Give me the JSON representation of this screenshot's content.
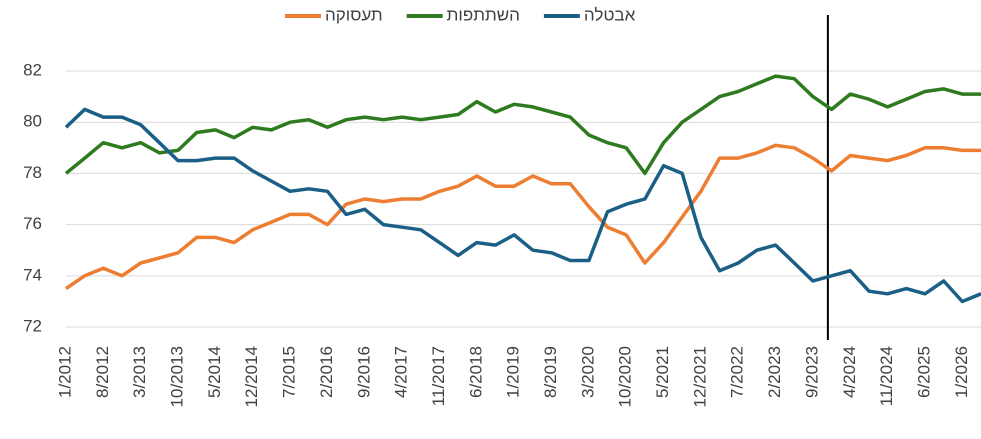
{
  "chart_data": {
    "type": "line",
    "categories": [
      "1/2012",
      null,
      "8/2012",
      null,
      "3/2013",
      null,
      "10/2013",
      null,
      "5/2014",
      null,
      "12/2014",
      null,
      "7/2015",
      null,
      "2/2016",
      null,
      "9/2016",
      null,
      "4/2017",
      null,
      "11/2017",
      null,
      "6/2018",
      null,
      "1/2019",
      null,
      "8/2019",
      null,
      "3/2020",
      null,
      "10/2020",
      null,
      "5/2021",
      null,
      "12/2021",
      null,
      "7/2022",
      null,
      "2/2023",
      null,
      "9/2023",
      null,
      "4/2024",
      null,
      "11/2024",
      null,
      "6/2025",
      null,
      "1/2026",
      null
    ],
    "series": [
      {
        "name": "תעסוקה",
        "color": "#ed7d31",
        "values": [
          73.5,
          74.0,
          74.3,
          74.0,
          74.5,
          74.7,
          74.9,
          75.5,
          75.5,
          75.3,
          75.8,
          76.1,
          76.4,
          76.4,
          76.0,
          76.8,
          77.0,
          76.9,
          77.0,
          77.0,
          77.3,
          77.5,
          77.9,
          77.5,
          77.5,
          77.9,
          77.6,
          77.6,
          76.7,
          75.9,
          75.6,
          74.5,
          75.3,
          76.3,
          77.3,
          78.6,
          78.6,
          78.8,
          79.1,
          79.0,
          78.6,
          78.1,
          78.7,
          78.6,
          78.5,
          78.7,
          79.0,
          79.0,
          78.9,
          78.9
        ]
      },
      {
        "name": "השתתפות",
        "color": "#2e7a1f",
        "values": [
          78.0,
          78.6,
          79.2,
          79.0,
          79.2,
          78.8,
          78.9,
          79.6,
          79.7,
          79.4,
          79.8,
          79.7,
          80.0,
          80.1,
          79.8,
          80.1,
          80.2,
          80.1,
          80.2,
          80.1,
          80.2,
          80.3,
          80.8,
          80.4,
          80.7,
          80.6,
          80.4,
          80.2,
          79.5,
          79.2,
          79.0,
          78.0,
          79.2,
          80.0,
          80.5,
          81.0,
          81.2,
          81.5,
          81.8,
          81.7,
          81.0,
          80.5,
          81.1,
          80.9,
          80.6,
          80.9,
          81.2,
          81.3,
          81.1,
          81.1
        ]
      },
      {
        "name": "אבטלה",
        "color": "#1b5e86",
        "values": [
          79.8,
          80.5,
          80.2,
          80.2,
          79.9,
          79.2,
          78.5,
          78.5,
          78.6,
          78.6,
          78.1,
          77.7,
          77.3,
          77.4,
          77.3,
          76.4,
          76.6,
          76.0,
          75.9,
          75.8,
          75.3,
          74.8,
          75.3,
          75.2,
          75.6,
          75.0,
          74.9,
          74.6,
          74.6,
          76.5,
          76.8,
          77.0,
          78.3,
          78.0,
          75.5,
          74.2,
          74.5,
          75.0,
          75.2,
          74.5,
          73.8,
          74.0,
          74.2,
          73.4,
          73.3,
          73.5,
          73.3,
          73.8,
          73.0,
          73.3
        ]
      }
    ],
    "ylim": [
      71.6,
      83
    ],
    "yticks": [
      72,
      74,
      76,
      78,
      80,
      82
    ],
    "grid": true,
    "legend": "top"
  }
}
